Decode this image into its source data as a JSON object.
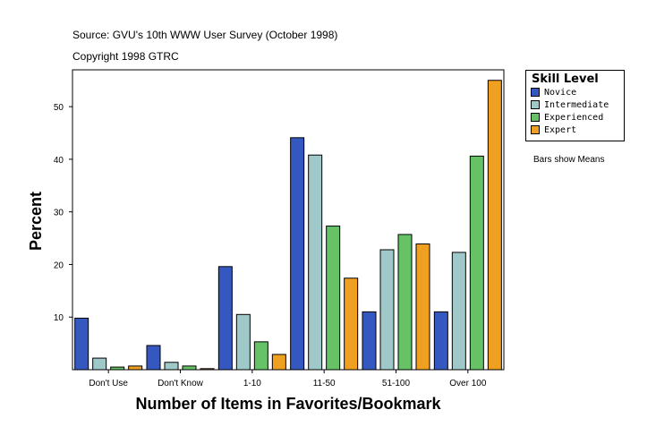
{
  "header": {
    "source": "Source: GVU's 10th WWW User Survey (October 1998)",
    "copyright": "Copyright 1998 GTRC"
  },
  "note": "Bars show Means",
  "chart_data": {
    "type": "bar",
    "title": "",
    "xlabel": "Number of Items in Favorites/Bookmark",
    "ylabel": "Percent",
    "categories": [
      "Don't Use",
      "Don't Know",
      "1-10",
      "11-50",
      "51-100",
      "Over 100"
    ],
    "yticks": [
      10,
      20,
      30,
      40,
      50
    ],
    "ylim": [
      0,
      57
    ],
    "grid": false,
    "legend_title": "Skill Level",
    "legend_position": "right",
    "series": [
      {
        "name": "Novice",
        "color": "#3558c0",
        "values": [
          9.8,
          4.6,
          19.6,
          44.1,
          11.0,
          11.0
        ]
      },
      {
        "name": "Intermediate",
        "color": "#9fc8c8",
        "values": [
          2.2,
          1.4,
          10.5,
          40.8,
          22.8,
          22.3
        ]
      },
      {
        "name": "Experienced",
        "color": "#66c266",
        "values": [
          0.5,
          0.7,
          5.3,
          27.3,
          25.7,
          40.6
        ]
      },
      {
        "name": "Expert",
        "color": "#f0a020",
        "values": [
          0.7,
          0.2,
          2.9,
          17.4,
          23.9,
          55.0
        ]
      }
    ]
  }
}
